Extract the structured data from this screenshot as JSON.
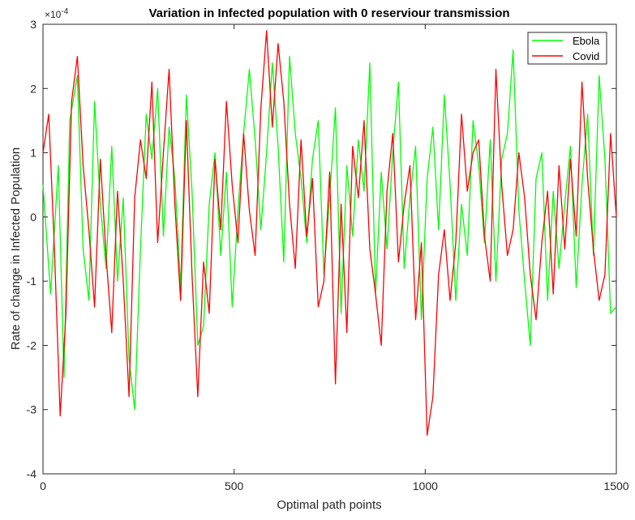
{
  "chart_data": {
    "type": "line",
    "title": "Variation in Infected population with 0 reserviour transmission",
    "xlabel": "Optimal path points",
    "ylabel": "Rate of change in Infected Population",
    "y_exponent_base": "×10",
    "y_exponent_power": "-4",
    "xlim": [
      0,
      1500
    ],
    "ylim": [
      -4,
      3
    ],
    "x_ticks": [
      0,
      500,
      1000,
      1500
    ],
    "y_ticks": [
      -4,
      -3,
      -2,
      -1,
      0,
      1,
      2,
      3
    ],
    "grid": false,
    "legend_position": "top-right",
    "series": [
      {
        "name": "Ebola",
        "color": "#00ff00",
        "x": [
          0,
          20,
          40,
          55,
          70,
          90,
          105,
          120,
          135,
          150,
          165,
          180,
          195,
          210,
          225,
          240,
          255,
          270,
          285,
          300,
          315,
          330,
          345,
          360,
          375,
          390,
          405,
          420,
          435,
          450,
          465,
          480,
          495,
          510,
          525,
          540,
          555,
          570,
          585,
          600,
          615,
          630,
          645,
          660,
          675,
          690,
          705,
          720,
          735,
          750,
          765,
          780,
          795,
          810,
          825,
          840,
          855,
          870,
          885,
          900,
          915,
          930,
          945,
          960,
          975,
          990,
          1005,
          1020,
          1035,
          1050,
          1065,
          1080,
          1095,
          1110,
          1125,
          1140,
          1155,
          1170,
          1185,
          1200,
          1215,
          1230,
          1245,
          1260,
          1275,
          1290,
          1305,
          1320,
          1335,
          1350,
          1365,
          1380,
          1395,
          1410,
          1425,
          1440,
          1455,
          1470,
          1485,
          1500
        ],
        "y": [
          0.5,
          -1.2,
          0.8,
          -2.5,
          1.5,
          2.2,
          -0.5,
          -1.3,
          1.8,
          0.2,
          -0.8,
          1.1,
          -1.0,
          0.3,
          -2.2,
          -3.0,
          -0.5,
          1.6,
          0.9,
          2.0,
          -0.3,
          1.4,
          0.6,
          -1.1,
          1.9,
          0.4,
          -2.0,
          -1.7,
          0.2,
          1.0,
          -0.6,
          0.7,
          -1.4,
          0.1,
          1.3,
          2.3,
          1.2,
          -0.2,
          1.0,
          2.4,
          1.1,
          -0.7,
          2.5,
          1.3,
          0.6,
          -0.4,
          0.9,
          1.5,
          -0.9,
          0.3,
          1.7,
          -1.5,
          0.8,
          -0.3,
          1.2,
          0.4,
          2.4,
          -1.2,
          0.7,
          -0.5,
          1.0,
          2.1,
          -0.8,
          0.3,
          1.1,
          -1.6,
          0.6,
          1.4,
          -0.2,
          1.9,
          0.5,
          -1.3,
          0.2,
          -0.6,
          1.5,
          0.8,
          -0.4,
          1.2,
          -1.0,
          0.9,
          1.3,
          2.6,
          0.1,
          -1.0,
          -2.0,
          0.6,
          1.0,
          -1.3,
          0.4,
          -0.8,
          0.2,
          1.1,
          -1.1,
          0.5,
          1.6,
          -0.6,
          2.2,
          0.9,
          -1.5,
          -1.4
        ]
      },
      {
        "name": "Covid",
        "color": "#ff0000",
        "x": [
          0,
          15,
          30,
          45,
          60,
          75,
          90,
          105,
          120,
          135,
          150,
          165,
          180,
          195,
          210,
          225,
          240,
          255,
          270,
          285,
          300,
          315,
          330,
          345,
          360,
          375,
          390,
          405,
          420,
          435,
          450,
          465,
          480,
          495,
          510,
          525,
          540,
          555,
          570,
          585,
          600,
          615,
          630,
          645,
          660,
          675,
          690,
          705,
          720,
          735,
          750,
          765,
          780,
          795,
          810,
          825,
          840,
          855,
          870,
          885,
          900,
          915,
          930,
          945,
          960,
          975,
          990,
          1005,
          1020,
          1035,
          1050,
          1065,
          1080,
          1095,
          1110,
          1125,
          1140,
          1155,
          1170,
          1185,
          1200,
          1215,
          1230,
          1245,
          1260,
          1275,
          1290,
          1305,
          1320,
          1335,
          1350,
          1365,
          1380,
          1395,
          1410,
          1425,
          1440,
          1455,
          1470,
          1485,
          1500
        ],
        "y": [
          1.0,
          1.6,
          -0.5,
          -3.1,
          -1.5,
          1.8,
          2.5,
          0.8,
          -0.2,
          -1.4,
          0.9,
          -0.6,
          -1.8,
          0.4,
          -1.0,
          -2.8,
          0.3,
          1.2,
          0.6,
          2.1,
          -0.4,
          1.0,
          2.3,
          0.2,
          -1.3,
          1.5,
          -0.9,
          -2.8,
          -0.7,
          -1.5,
          0.9,
          -0.2,
          1.8,
          0.5,
          -0.4,
          1.3,
          0.1,
          -0.6,
          1.7,
          2.9,
          1.4,
          2.7,
          1.8,
          0.2,
          -0.8,
          1.2,
          -0.3,
          0.6,
          -1.4,
          -1.0,
          0.7,
          -2.6,
          0.2,
          -1.8,
          1.1,
          0.3,
          1.5,
          -0.5,
          -1.2,
          -2.0,
          0.4,
          1.3,
          -0.7,
          0.2,
          0.8,
          -1.6,
          -0.4,
          -3.4,
          -2.8,
          -0.9,
          -0.2,
          -1.3,
          -0.4,
          1.6,
          0.4,
          1.0,
          1.2,
          -0.3,
          -1.0,
          2.3,
          0.5,
          -0.6,
          -0.2,
          1.0,
          0.3,
          -0.9,
          -1.6,
          -0.4,
          0.4,
          -1.2,
          0.8,
          -0.5,
          0.9,
          -0.3,
          2.1,
          0.6,
          -0.5,
          -1.3,
          -0.9,
          1.3,
          0.0
        ]
      }
    ]
  }
}
